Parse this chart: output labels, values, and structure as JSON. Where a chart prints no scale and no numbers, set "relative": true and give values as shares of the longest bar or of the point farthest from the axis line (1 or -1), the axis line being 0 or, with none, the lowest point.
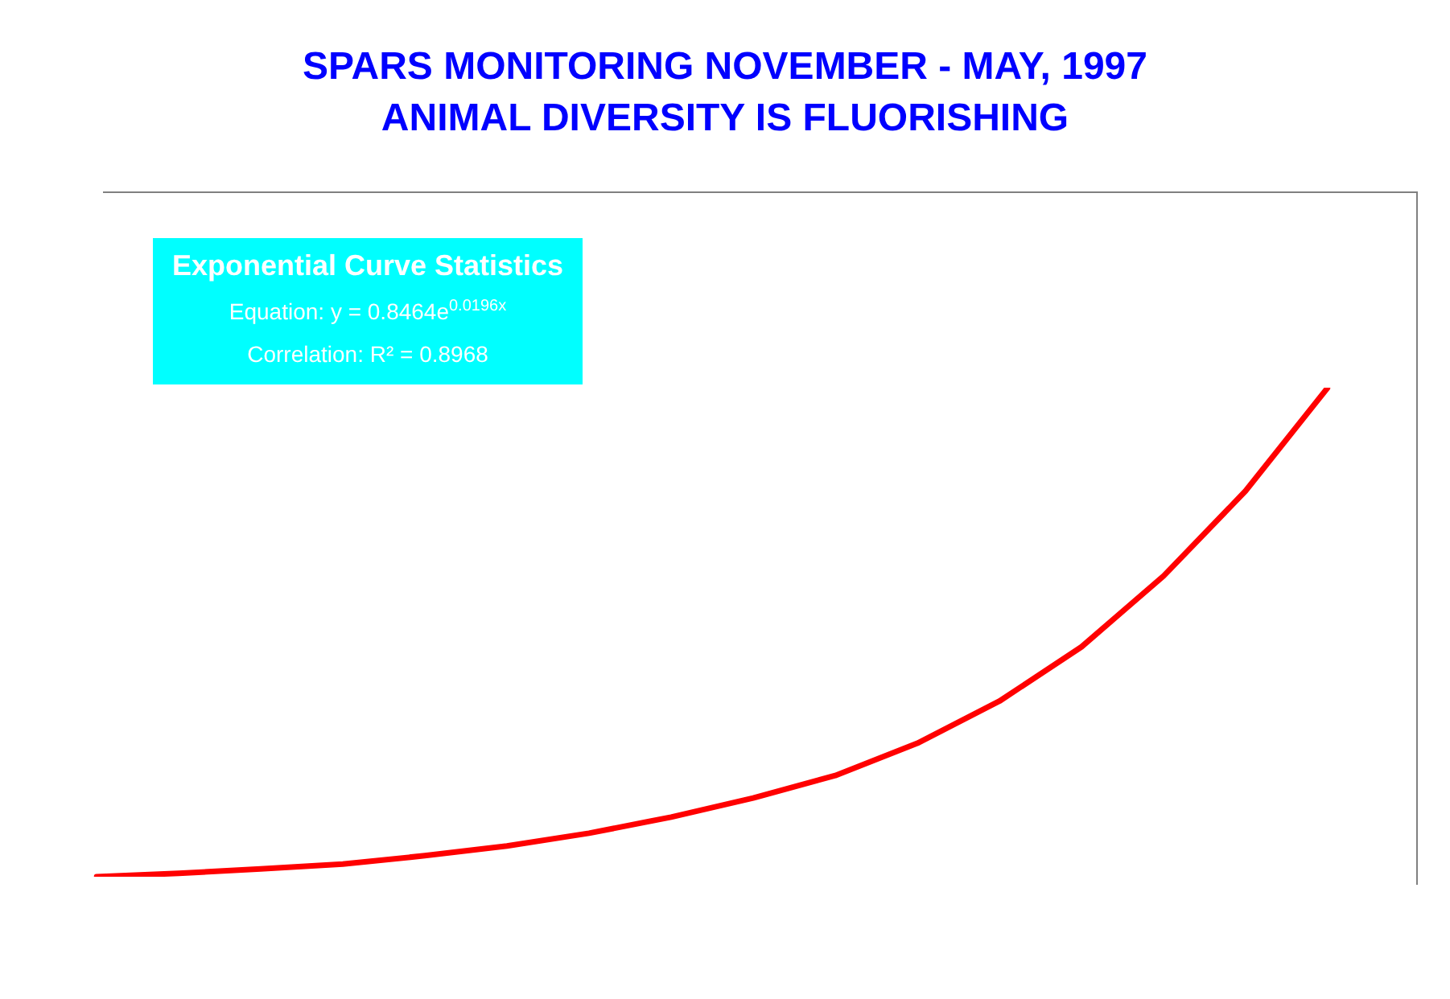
{
  "chart_data": {
    "type": "line",
    "title": "SPARS MONITORING NOVEMBER - MAY, 1997\nANIMAL DIVERSITY IS FLUORISHING",
    "categories": [
      null,
      null,
      null,
      null,
      null,
      null,
      null,
      null,
      null,
      null,
      null,
      null,
      null,
      null,
      null,
      null
    ],
    "values": [
      0,
      0.007,
      0.016,
      0.026,
      0.043,
      0.063,
      0.089,
      0.122,
      0.161,
      0.207,
      0.273,
      0.359,
      0.47,
      0.615,
      0.789,
      1
    ],
    "color": "#ff0000",
    "relative": true,
    "marker": "none",
    "line_style": "solid",
    "annotations": [
      "Exponential Curve Statistics",
      "Equation: y = 0.8464e$^{0.0196x}$",
      "Correlation: R² = 0.8968"
    ]
  }
}
